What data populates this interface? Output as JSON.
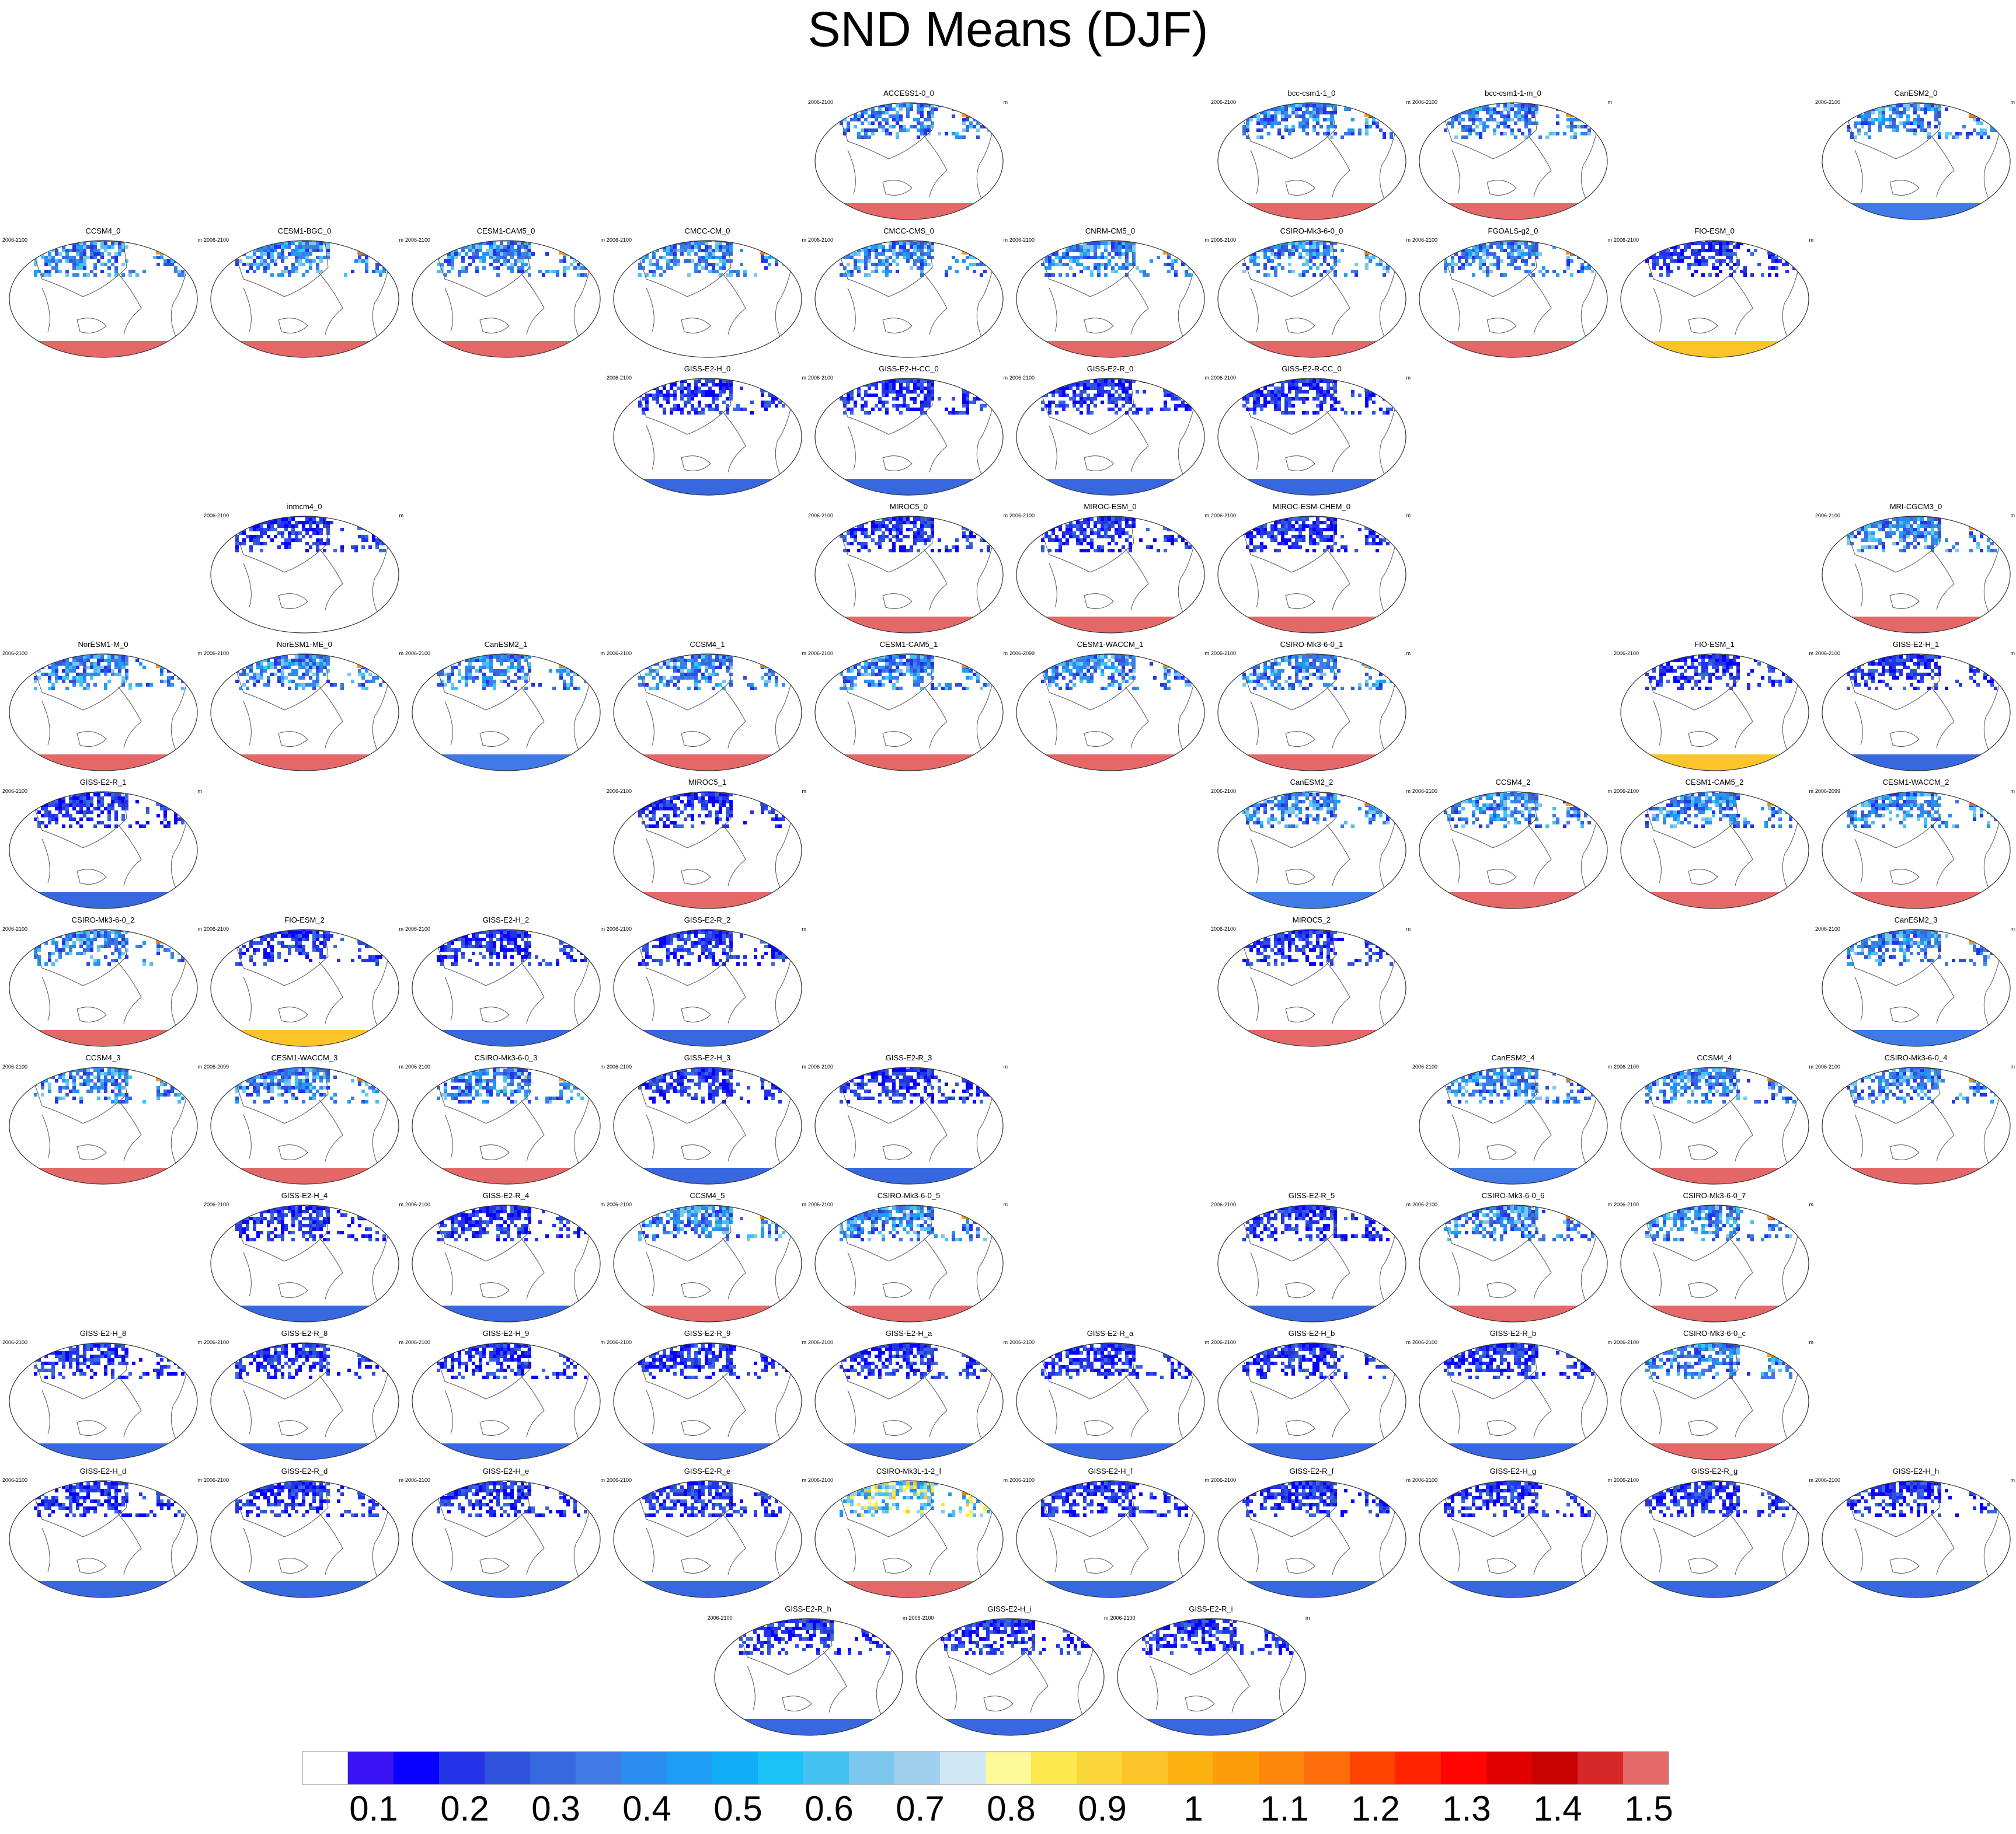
{
  "title": "SND Means (DJF)",
  "colors": {
    "land_outline": "#555555",
    "ocean": "#ffffff",
    "panel_border": "#333333"
  },
  "colorbar": {
    "colors": [
      "#ffffff",
      "#3b14f5",
      "#0a00ff",
      "#2233e8",
      "#2f52dc",
      "#3868e0",
      "#3f7ae6",
      "#2b8cf0",
      "#1e9df5",
      "#11adf7",
      "#1bc2f8",
      "#44c3f2",
      "#7cc7ee",
      "#9fd1ef",
      "#cde7f5",
      "#fdf89a",
      "#fde850",
      "#fbd63a",
      "#fbc52a",
      "#fbb10f",
      "#fc9c08",
      "#fc870a",
      "#fe6e0a",
      "#fe4300",
      "#ff2300",
      "#fe0503",
      "#e00000",
      "#c70000",
      "#d62828",
      "#e56868"
    ],
    "labels": [
      "0.1",
      "0.2",
      "0.3",
      "0.4",
      "0.5",
      "0.6",
      "0.7",
      "0.8",
      "0.9",
      "1",
      "1.1",
      "1.2",
      "1.3",
      "1.4",
      "1.5"
    ]
  },
  "chart_data": {
    "type": "heatmap",
    "title": "SND Means (DJF)",
    "units": "m",
    "projection": "Robinson (global, Pacific-centered)",
    "levels": [
      0.1,
      0.2,
      0.3,
      0.4,
      0.5,
      0.6,
      0.7,
      0.8,
      0.9,
      1,
      1.1,
      1.2,
      1.3,
      1.4,
      1.5
    ],
    "panels": [
      {
        "model": "ACCESS1-0_0",
        "period": "2006-2100",
        "units": "m",
        "antarctic": "#e56868",
        "nh": "mid",
        "row": 0,
        "col": 4
      },
      {
        "model": "bcc-csm1-1_0",
        "period": "2006-2100",
        "units": "m",
        "antarctic": "#e56868",
        "nh": "mid",
        "row": 0,
        "col": 6
      },
      {
        "model": "bcc-csm1-1-m_0",
        "period": "2006-2100",
        "units": "m",
        "antarctic": "#e56868",
        "nh": "mid",
        "row": 0,
        "col": 7
      },
      {
        "model": "CanESM2_0",
        "period": "2006-2100",
        "units": "m",
        "antarctic": "#3f7ae6",
        "nh": "mid",
        "row": 0,
        "col": 9
      },
      {
        "model": "CCSM4_0",
        "period": "2006-2100",
        "units": "m",
        "antarctic": "#e56868",
        "nh": "mid",
        "row": 1,
        "col": 0
      },
      {
        "model": "CESM1-BGC_0",
        "period": "2006-2100",
        "units": "m",
        "antarctic": "#e56868",
        "nh": "mid",
        "row": 1,
        "col": 1
      },
      {
        "model": "CESM1-CAM5_0",
        "period": "2006-2100",
        "units": "m",
        "antarctic": "#e56868",
        "nh": "mid",
        "row": 1,
        "col": 2
      },
      {
        "model": "CMCC-CM_0",
        "period": "2006-2100",
        "units": "m",
        "antarctic": "none",
        "nh": "mid",
        "row": 1,
        "col": 3
      },
      {
        "model": "CMCC-CMS_0",
        "period": "2006-2100",
        "units": "m",
        "antarctic": "none",
        "nh": "mid",
        "row": 1,
        "col": 4
      },
      {
        "model": "CNRM-CM5_0",
        "period": "2006-2100",
        "units": "m",
        "antarctic": "#e56868",
        "nh": "mid",
        "row": 1,
        "col": 5
      },
      {
        "model": "CSIRO-Mk3-6-0_0",
        "period": "2006-2100",
        "units": "m",
        "antarctic": "#e56868",
        "nh": "mid",
        "row": 1,
        "col": 6
      },
      {
        "model": "FGOALS-g2_0",
        "period": "2006-2100",
        "units": "m",
        "antarctic": "#e56868",
        "nh": "mid",
        "row": 1,
        "col": 7
      },
      {
        "model": "FIO-ESM_0",
        "period": "2006-2100",
        "units": "m",
        "antarctic": "#fbc52a",
        "nh": "low",
        "row": 1,
        "col": 8
      },
      {
        "model": "GISS-E2-H_0",
        "period": "2006-2100",
        "units": "m",
        "antarctic": "#3868e0",
        "nh": "low",
        "row": 2,
        "col": 3
      },
      {
        "model": "GISS-E2-H-CC_0",
        "period": "2006-2100",
        "units": "m",
        "antarctic": "#3868e0",
        "nh": "low",
        "row": 2,
        "col": 4
      },
      {
        "model": "GISS-E2-R_0",
        "period": "2006-2100",
        "units": "m",
        "antarctic": "#3868e0",
        "nh": "low",
        "row": 2,
        "col": 5
      },
      {
        "model": "GISS-E2-R-CC_0",
        "period": "2006-2100",
        "units": "m",
        "antarctic": "#3868e0",
        "nh": "low",
        "row": 2,
        "col": 6
      },
      {
        "model": "inmcm4_0",
        "period": "2006-2100",
        "units": "m",
        "antarctic": "none",
        "nh": "low",
        "row": 3,
        "col": 1
      },
      {
        "model": "MIROC5_0",
        "period": "2006-2100",
        "units": "m",
        "antarctic": "#e56868",
        "nh": "low",
        "row": 3,
        "col": 4
      },
      {
        "model": "MIROC-ESM_0",
        "period": "2006-2100",
        "units": "m",
        "antarctic": "#e56868",
        "nh": "low",
        "row": 3,
        "col": 5
      },
      {
        "model": "MIROC-ESM-CHEM_0",
        "period": "2006-2100",
        "units": "m",
        "antarctic": "#e56868",
        "nh": "low",
        "row": 3,
        "col": 6
      },
      {
        "model": "MRI-CGCM3_0",
        "period": "2006-2100",
        "units": "m",
        "antarctic": "#e56868",
        "nh": "mid",
        "row": 3,
        "col": 9
      },
      {
        "model": "NorESM1-M_0",
        "period": "2006-2100",
        "units": "m",
        "antarctic": "#e56868",
        "nh": "mid",
        "row": 4,
        "col": 0
      },
      {
        "model": "NorESM1-ME_0",
        "period": "2006-2100",
        "units": "m",
        "antarctic": "#e56868",
        "nh": "mid",
        "row": 4,
        "col": 1
      },
      {
        "model": "CanESM2_1",
        "period": "2006-2100",
        "units": "m",
        "antarctic": "#3f7ae6",
        "nh": "mid",
        "row": 4,
        "col": 2
      },
      {
        "model": "CCSM4_1",
        "period": "2006-2100",
        "units": "m",
        "antarctic": "#e56868",
        "nh": "mid",
        "row": 4,
        "col": 3
      },
      {
        "model": "CESM1-CAM5_1",
        "period": "2006-2100",
        "units": "m",
        "antarctic": "#e56868",
        "nh": "mid",
        "row": 4,
        "col": 4
      },
      {
        "model": "CESM1-WACCM_1",
        "period": "2006-2099",
        "units": "m",
        "antarctic": "#e56868",
        "nh": "mid",
        "row": 4,
        "col": 5
      },
      {
        "model": "CSIRO-Mk3-6-0_1",
        "period": "2006-2100",
        "units": "m",
        "antarctic": "#e56868",
        "nh": "mid",
        "row": 4,
        "col": 6
      },
      {
        "model": "FIO-ESM_1",
        "period": "2006-2100",
        "units": "m",
        "antarctic": "#fbc52a",
        "nh": "low",
        "row": 4,
        "col": 8
      },
      {
        "model": "GISS-E2-H_1",
        "period": "2006-2100",
        "units": "m",
        "antarctic": "#3868e0",
        "nh": "low",
        "row": 4,
        "col": 9
      },
      {
        "model": "GISS-E2-R_1",
        "period": "2006-2100",
        "units": "m",
        "antarctic": "#3868e0",
        "nh": "low",
        "row": 5,
        "col": 0
      },
      {
        "model": "MIROC5_1",
        "period": "2006-2100",
        "units": "m",
        "antarctic": "#e56868",
        "nh": "low",
        "row": 5,
        "col": 3
      },
      {
        "model": "CanESM2_2",
        "period": "2006-2100",
        "units": "m",
        "antarctic": "#3f7ae6",
        "nh": "mid",
        "row": 5,
        "col": 6
      },
      {
        "model": "CCSM4_2",
        "period": "2006-2100",
        "units": "m",
        "antarctic": "#e56868",
        "nh": "mid",
        "row": 5,
        "col": 7
      },
      {
        "model": "CESM1-CAM5_2",
        "period": "2006-2100",
        "units": "m",
        "antarctic": "#e56868",
        "nh": "mid",
        "row": 5,
        "col": 8
      },
      {
        "model": "CESM1-WACCM_2",
        "period": "2006-2099",
        "units": "m",
        "antarctic": "#e56868",
        "nh": "mid",
        "row": 5,
        "col": 9
      },
      {
        "model": "CSIRO-Mk3-6-0_2",
        "period": "2006-2100",
        "units": "m",
        "antarctic": "#e56868",
        "nh": "mid",
        "row": 6,
        "col": 0
      },
      {
        "model": "FIO-ESM_2",
        "period": "2006-2100",
        "units": "m",
        "antarctic": "#fbc52a",
        "nh": "low",
        "row": 6,
        "col": 1
      },
      {
        "model": "GISS-E2-H_2",
        "period": "2006-2100",
        "units": "m",
        "antarctic": "#3868e0",
        "nh": "low",
        "row": 6,
        "col": 2
      },
      {
        "model": "GISS-E2-R_2",
        "period": "2006-2100",
        "units": "m",
        "antarctic": "#3868e0",
        "nh": "low",
        "row": 6,
        "col": 3
      },
      {
        "model": "MIROC5_2",
        "period": "2006-2100",
        "units": "m",
        "antarctic": "#e56868",
        "nh": "low",
        "row": 6,
        "col": 6
      },
      {
        "model": "CanESM2_3",
        "period": "2006-2100",
        "units": "m",
        "antarctic": "#3f7ae6",
        "nh": "mid",
        "row": 6,
        "col": 9
      },
      {
        "model": "CCSM4_3",
        "period": "2006-2100",
        "units": "m",
        "antarctic": "#e56868",
        "nh": "mid",
        "row": 7,
        "col": 0
      },
      {
        "model": "CESM1-WACCM_3",
        "period": "2006-2099",
        "units": "m",
        "antarctic": "#e56868",
        "nh": "mid",
        "row": 7,
        "col": 1
      },
      {
        "model": "CSIRO-Mk3-6-0_3",
        "period": "2006-2100",
        "units": "m",
        "antarctic": "#e56868",
        "nh": "mid",
        "row": 7,
        "col": 2
      },
      {
        "model": "GISS-E2-H_3",
        "period": "2006-2100",
        "units": "m",
        "antarctic": "#3868e0",
        "nh": "low",
        "row": 7,
        "col": 3
      },
      {
        "model": "GISS-E2-R_3",
        "period": "2006-2100",
        "units": "m",
        "antarctic": "#3868e0",
        "nh": "low",
        "row": 7,
        "col": 4
      },
      {
        "model": "CanESM2_4",
        "period": "2006-2100",
        "units": "m",
        "antarctic": "#3f7ae6",
        "nh": "mid",
        "row": 7,
        "col": 7
      },
      {
        "model": "CCSM4_4",
        "period": "2006-2100",
        "units": "m",
        "antarctic": "#e56868",
        "nh": "mid",
        "row": 7,
        "col": 8
      },
      {
        "model": "CSIRO-Mk3-6-0_4",
        "period": "2006-2100",
        "units": "m",
        "antarctic": "#e56868",
        "nh": "mid",
        "row": 7,
        "col": 9
      },
      {
        "model": "GISS-E2-H_4",
        "period": "2006-2100",
        "units": "m",
        "antarctic": "#3868e0",
        "nh": "low",
        "row": 8,
        "col": 1
      },
      {
        "model": "GISS-E2-R_4",
        "period": "2006-2100",
        "units": "m",
        "antarctic": "#3868e0",
        "nh": "low",
        "row": 8,
        "col": 2
      },
      {
        "model": "CCSM4_5",
        "period": "2006-2100",
        "units": "m",
        "antarctic": "#e56868",
        "nh": "mid",
        "row": 8,
        "col": 3
      },
      {
        "model": "CSIRO-Mk3-6-0_5",
        "period": "2006-2100",
        "units": "m",
        "antarctic": "#e56868",
        "nh": "mid",
        "row": 8,
        "col": 4
      },
      {
        "model": "GISS-E2-R_5",
        "period": "2006-2100",
        "units": "m",
        "antarctic": "#3868e0",
        "nh": "low",
        "row": 8,
        "col": 6
      },
      {
        "model": "CSIRO-Mk3-6-0_6",
        "period": "2006-2100",
        "units": "m",
        "antarctic": "#e56868",
        "nh": "mid",
        "row": 8,
        "col": 7
      },
      {
        "model": "CSIRO-Mk3-6-0_7",
        "period": "2006-2100",
        "units": "m",
        "antarctic": "#e56868",
        "nh": "mid",
        "row": 8,
        "col": 8
      },
      {
        "model": "GISS-E2-H_8",
        "period": "2006-2100",
        "units": "m",
        "antarctic": "#3868e0",
        "nh": "low",
        "row": 9,
        "col": 0
      },
      {
        "model": "GISS-E2-R_8",
        "period": "2006-2100",
        "units": "m",
        "antarctic": "#3868e0",
        "nh": "low",
        "row": 9,
        "col": 1
      },
      {
        "model": "GISS-E2-H_9",
        "period": "2006-2100",
        "units": "m",
        "antarctic": "#3868e0",
        "nh": "low",
        "row": 9,
        "col": 2
      },
      {
        "model": "GISS-E2-R_9",
        "period": "2006-2100",
        "units": "m",
        "antarctic": "#3868e0",
        "nh": "low",
        "row": 9,
        "col": 3
      },
      {
        "model": "GISS-E2-H_a",
        "period": "2006-2100",
        "units": "m",
        "antarctic": "#3868e0",
        "nh": "low",
        "row": 9,
        "col": 4
      },
      {
        "model": "GISS-E2-R_a",
        "period": "2006-2100",
        "units": "m",
        "antarctic": "#3868e0",
        "nh": "low",
        "row": 9,
        "col": 5
      },
      {
        "model": "GISS-E2-H_b",
        "period": "2006-2100",
        "units": "m",
        "antarctic": "#3868e0",
        "nh": "low",
        "row": 9,
        "col": 6
      },
      {
        "model": "GISS-E2-R_b",
        "period": "2006-2100",
        "units": "m",
        "antarctic": "#3868e0",
        "nh": "low",
        "row": 9,
        "col": 7
      },
      {
        "model": "CSIRO-Mk3-6-0_c",
        "period": "2006-2100",
        "units": "m",
        "antarctic": "#e56868",
        "nh": "mid",
        "row": 9,
        "col": 8
      },
      {
        "model": "GISS-E2-H_d",
        "period": "2006-2100",
        "units": "m",
        "antarctic": "#3868e0",
        "nh": "low",
        "row": 10,
        "col": 0
      },
      {
        "model": "GISS-E2-R_d",
        "period": "2006-2100",
        "units": "m",
        "antarctic": "#3868e0",
        "nh": "low",
        "row": 10,
        "col": 1
      },
      {
        "model": "GISS-E2-H_e",
        "period": "2006-2100",
        "units": "m",
        "antarctic": "#3868e0",
        "nh": "low",
        "row": 10,
        "col": 2
      },
      {
        "model": "GISS-E2-R_e",
        "period": "2006-2100",
        "units": "m",
        "antarctic": "#3868e0",
        "nh": "low",
        "row": 10,
        "col": 3
      },
      {
        "model": "CSIRO-Mk3L-1-2_f",
        "period": "2006-2100",
        "units": "m",
        "antarctic": "#e56868",
        "nh": "high",
        "row": 10,
        "col": 4
      },
      {
        "model": "GISS-E2-H_f",
        "period": "2006-2100",
        "units": "m",
        "antarctic": "#3868e0",
        "nh": "low",
        "row": 10,
        "col": 5
      },
      {
        "model": "GISS-E2-R_f",
        "period": "2006-2100",
        "units": "m",
        "antarctic": "#3868e0",
        "nh": "low",
        "row": 10,
        "col": 6
      },
      {
        "model": "GISS-E2-H_g",
        "period": "2006-2100",
        "units": "m",
        "antarctic": "#3868e0",
        "nh": "low",
        "row": 10,
        "col": 7
      },
      {
        "model": "GISS-E2-R_g",
        "period": "2006-2100",
        "units": "m",
        "antarctic": "#3868e0",
        "nh": "low",
        "row": 10,
        "col": 8
      },
      {
        "model": "GISS-E2-H_h",
        "period": "2006-2100",
        "units": "m",
        "antarctic": "#3868e0",
        "nh": "low",
        "row": 10,
        "col": 9
      },
      {
        "model": "GISS-E2-R_h",
        "period": "2006-2100",
        "units": "m",
        "antarctic": "#3868e0",
        "nh": "low",
        "row": 11,
        "col": 3.5
      },
      {
        "model": "GISS-E2-H_i",
        "period": "2006-2100",
        "units": "m",
        "antarctic": "#3868e0",
        "nh": "low",
        "row": 11,
        "col": 4.5
      },
      {
        "model": "GISS-E2-R_i",
        "period": "2006-2100",
        "units": "m",
        "antarctic": "#3868e0",
        "nh": "low",
        "row": 11,
        "col": 5.5
      }
    ]
  }
}
